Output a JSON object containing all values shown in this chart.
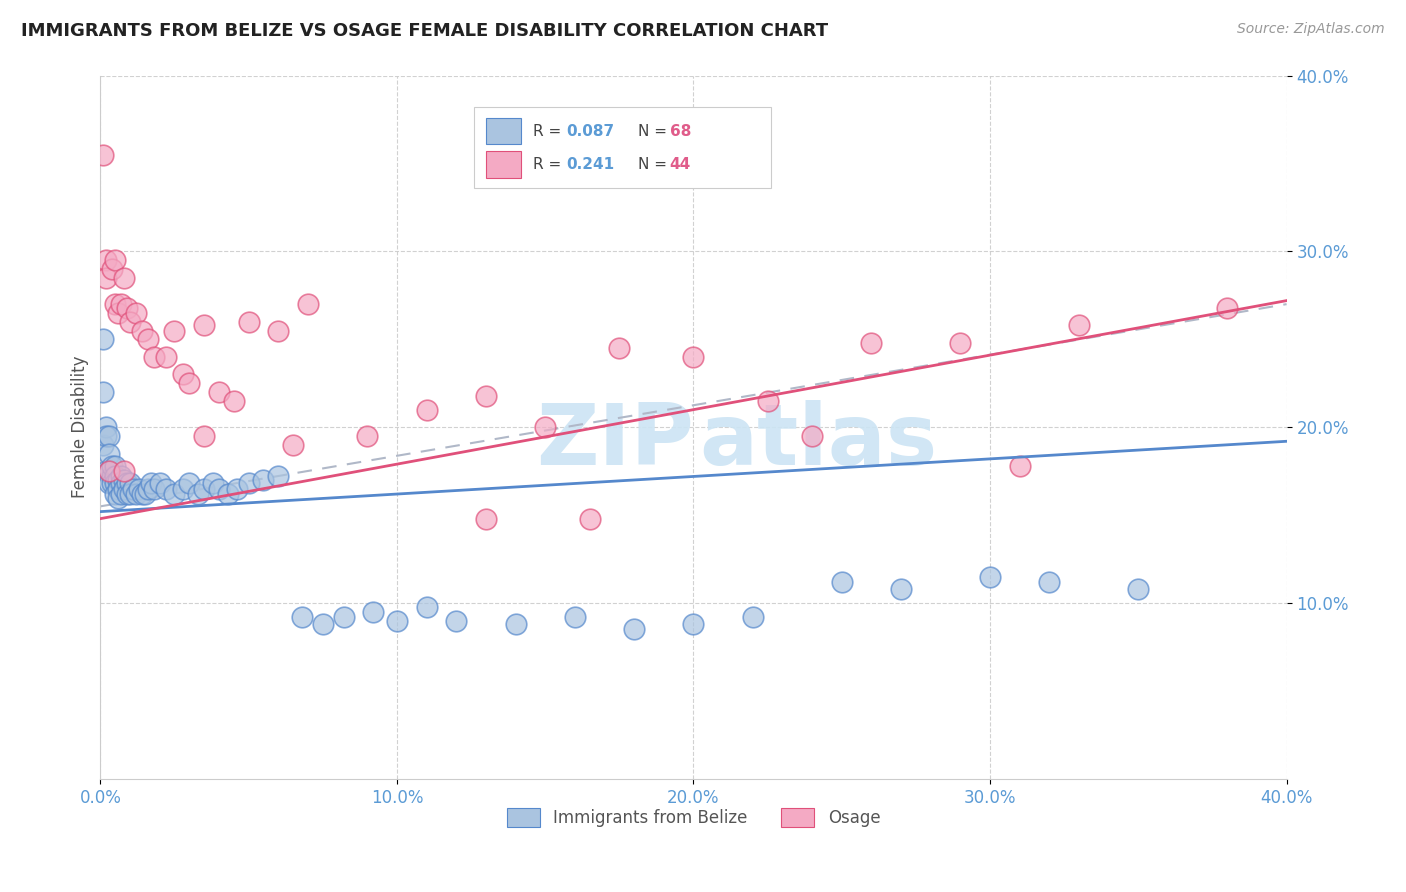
{
  "title": "IMMIGRANTS FROM BELIZE VS OSAGE FEMALE DISABILITY CORRELATION CHART",
  "source_text": "Source: ZipAtlas.com",
  "ylabel": "Female Disability",
  "xlim": [
    0.0,
    0.4
  ],
  "ylim": [
    0.0,
    0.4
  ],
  "color_blue": "#aac4e0",
  "color_pink": "#f4aac4",
  "line_blue": "#5588cc",
  "line_pink": "#e0507a",
  "watermark_color": "#cce4f4",
  "r1": "0.087",
  "n1": "68",
  "r2": "0.241",
  "n2": "44",
  "blue_x": [
    0.001,
    0.001,
    0.001,
    0.002,
    0.002,
    0.002,
    0.003,
    0.003,
    0.003,
    0.003,
    0.004,
    0.004,
    0.004,
    0.005,
    0.005,
    0.005,
    0.005,
    0.006,
    0.006,
    0.006,
    0.007,
    0.007,
    0.007,
    0.008,
    0.008,
    0.009,
    0.009,
    0.01,
    0.01,
    0.011,
    0.012,
    0.013,
    0.014,
    0.015,
    0.016,
    0.017,
    0.018,
    0.02,
    0.022,
    0.025,
    0.028,
    0.03,
    0.033,
    0.035,
    0.038,
    0.04,
    0.043,
    0.046,
    0.05,
    0.055,
    0.06,
    0.068,
    0.075,
    0.082,
    0.092,
    0.1,
    0.11,
    0.12,
    0.14,
    0.16,
    0.18,
    0.2,
    0.22,
    0.25,
    0.27,
    0.3,
    0.32,
    0.35
  ],
  "blue_y": [
    0.25,
    0.22,
    0.19,
    0.2,
    0.195,
    0.175,
    0.195,
    0.185,
    0.175,
    0.168,
    0.172,
    0.178,
    0.168,
    0.178,
    0.172,
    0.168,
    0.162,
    0.17,
    0.165,
    0.16,
    0.172,
    0.168,
    0.162,
    0.17,
    0.165,
    0.168,
    0.162,
    0.168,
    0.162,
    0.165,
    0.162,
    0.165,
    0.162,
    0.162,
    0.165,
    0.168,
    0.165,
    0.168,
    0.165,
    0.162,
    0.165,
    0.168,
    0.162,
    0.165,
    0.168,
    0.165,
    0.162,
    0.165,
    0.168,
    0.17,
    0.172,
    0.092,
    0.088,
    0.092,
    0.095,
    0.09,
    0.098,
    0.09,
    0.088,
    0.092,
    0.085,
    0.088,
    0.092,
    0.112,
    0.108,
    0.115,
    0.112,
    0.108
  ],
  "pink_x": [
    0.001,
    0.002,
    0.002,
    0.004,
    0.005,
    0.005,
    0.006,
    0.007,
    0.008,
    0.009,
    0.01,
    0.012,
    0.014,
    0.016,
    0.018,
    0.022,
    0.025,
    0.028,
    0.03,
    0.035,
    0.04,
    0.045,
    0.05,
    0.06,
    0.07,
    0.09,
    0.11,
    0.13,
    0.15,
    0.175,
    0.2,
    0.225,
    0.26,
    0.29,
    0.33,
    0.38,
    0.003,
    0.008,
    0.035,
    0.065,
    0.13,
    0.165,
    0.24,
    0.31
  ],
  "pink_y": [
    0.355,
    0.295,
    0.285,
    0.29,
    0.295,
    0.27,
    0.265,
    0.27,
    0.285,
    0.268,
    0.26,
    0.265,
    0.255,
    0.25,
    0.24,
    0.24,
    0.255,
    0.23,
    0.225,
    0.258,
    0.22,
    0.215,
    0.26,
    0.255,
    0.27,
    0.195,
    0.21,
    0.218,
    0.2,
    0.245,
    0.24,
    0.215,
    0.248,
    0.248,
    0.258,
    0.268,
    0.175,
    0.175,
    0.195,
    0.19,
    0.148,
    0.148,
    0.195,
    0.178
  ]
}
